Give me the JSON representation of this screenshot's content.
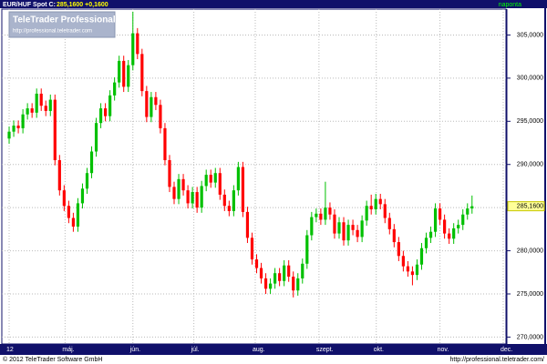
{
  "header": {
    "symbol": "EUR/HUF Spot C:",
    "last": "285,1600 +0,1600",
    "period": "naponta"
  },
  "logo": {
    "title": "TeleTrader Professional",
    "url": "http://professional.teletrader.com"
  },
  "footer": {
    "copyright": "© 2012 TeleTrader Software GmbH",
    "url": "http://professional.teletrader.com/"
  },
  "chart_data": {
    "type": "candlestick",
    "up_color": "#00c000",
    "down_color": "#ff0000",
    "grid": true,
    "last_price": {
      "value": 285.16,
      "label": "285,1600"
    },
    "xlim": [
      0,
      110
    ],
    "xticks": [
      {
        "value": 1,
        "label": "12"
      },
      {
        "value": 13.2,
        "label": "máj."
      },
      {
        "value": 28,
        "label": "jún."
      },
      {
        "value": 41.3,
        "label": "júl."
      },
      {
        "value": 54.7,
        "label": "aug."
      },
      {
        "value": 68.6,
        "label": "szept."
      },
      {
        "value": 81.1,
        "label": "okt."
      },
      {
        "value": 95,
        "label": "nov."
      },
      {
        "value": 108.8,
        "label": "dec."
      }
    ],
    "ylim": [
      269.2,
      308.0
    ],
    "yticks": [
      {
        "value": 270,
        "label": "270,0000"
      },
      {
        "value": 275,
        "label": "275,0000"
      },
      {
        "value": 280,
        "label": "280,0000"
      },
      {
        "value": 285,
        "label": "285,0000"
      },
      {
        "value": 290,
        "label": "290,0000"
      },
      {
        "value": 295,
        "label": "295,0000"
      },
      {
        "value": 300,
        "label": "300,0000"
      },
      {
        "value": 305,
        "label": "305,0000"
      }
    ],
    "x": [
      1,
      2,
      3,
      4,
      5,
      6,
      7,
      8,
      9,
      10,
      11,
      12,
      13,
      14,
      15,
      16,
      17,
      18,
      19,
      20,
      21,
      22,
      23,
      24,
      25,
      26,
      27,
      28,
      29,
      30,
      31,
      32,
      33,
      34,
      35,
      36,
      37,
      38,
      39,
      40,
      41,
      42,
      43,
      44,
      45,
      46,
      47,
      48,
      49,
      50,
      51,
      52,
      53,
      54,
      55,
      56,
      57,
      58,
      59,
      60,
      61,
      62,
      63,
      64,
      65,
      66,
      67,
      68,
      69,
      70,
      71,
      72,
      73,
      74,
      75,
      76,
      77,
      78,
      79,
      80,
      81,
      82,
      83,
      84,
      85,
      86,
      87,
      88,
      89,
      90,
      91,
      92,
      93,
      94,
      95,
      96,
      97,
      98,
      99,
      100,
      101,
      102
    ],
    "open": [
      293.0,
      293.8,
      294.5,
      294.2,
      295.8,
      296.5,
      296.0,
      298.2,
      296.8,
      296.2,
      297.5,
      290.5,
      287.0,
      285.2,
      283.8,
      282.8,
      285.5,
      287.2,
      289.0,
      291.5,
      294.8,
      296.5,
      295.6,
      298.0,
      299.5,
      302.0,
      299.0,
      301.5,
      305.2,
      302.8,
      298.5,
      295.5,
      297.8,
      296.9,
      294.2,
      290.5,
      287.4,
      286.0,
      288.3,
      287.0,
      285.5,
      286.8,
      285.0,
      287.5,
      288.8,
      287.9,
      289.0,
      286.5,
      285.2,
      284.6,
      287.0,
      289.7,
      284.5,
      281.5,
      279.0,
      278.0,
      276.8,
      275.6,
      276.2,
      277.4,
      276.5,
      278.3,
      277.0,
      275.4,
      276.8,
      278.5,
      281.8,
      283.9,
      284.3,
      283.6,
      285.0,
      284.2,
      282.0,
      283.3,
      281.2,
      283.0,
      282.4,
      281.6,
      283.5,
      285.2,
      284.8,
      286.0,
      285.4,
      283.8,
      282.5,
      281.0,
      279.4,
      278.2,
      277.6,
      277.2,
      278.4,
      280.3,
      281.5,
      282.2,
      284.9,
      283.6,
      282.0,
      281.4,
      282.6,
      283.0,
      284.2,
      284.9
    ],
    "high": [
      294.4,
      295.1,
      295.1,
      296.4,
      297.1,
      297.1,
      298.8,
      298.8,
      297.4,
      298.1,
      298.1,
      291.1,
      287.6,
      285.8,
      284.4,
      286.1,
      287.8,
      289.6,
      292.1,
      295.4,
      297.1,
      297.1,
      298.6,
      300.1,
      302.6,
      302.6,
      302.1,
      307.7,
      305.8,
      303.4,
      299.1,
      298.4,
      298.4,
      297.5,
      294.8,
      291.1,
      288.0,
      288.9,
      288.9,
      287.6,
      287.4,
      287.4,
      288.1,
      289.4,
      289.4,
      289.6,
      289.6,
      287.1,
      285.8,
      287.6,
      290.3,
      290.3,
      285.1,
      282.1,
      279.6,
      278.6,
      277.4,
      276.8,
      278.0,
      278.0,
      278.9,
      278.9,
      277.6,
      277.4,
      279.1,
      282.4,
      284.5,
      284.9,
      284.9,
      288.0,
      285.6,
      284.8,
      283.9,
      283.9,
      283.6,
      283.6,
      283.0,
      284.1,
      285.8,
      286.5,
      286.6,
      286.6,
      286.0,
      284.4,
      283.1,
      281.6,
      280.0,
      278.8,
      278.2,
      279.0,
      280.9,
      282.1,
      282.8,
      285.5,
      285.5,
      284.2,
      282.6,
      283.2,
      283.6,
      284.8,
      285.5,
      286.4
    ],
    "low": [
      292.4,
      293.2,
      293.6,
      293.6,
      295.2,
      295.4,
      295.4,
      296.2,
      295.6,
      295.6,
      289.9,
      286.4,
      284.6,
      283.2,
      282.2,
      282.2,
      284.9,
      286.6,
      288.4,
      290.9,
      294.2,
      295.0,
      295.0,
      297.4,
      298.9,
      298.4,
      298.4,
      300.9,
      302.2,
      297.9,
      294.9,
      294.9,
      296.3,
      293.6,
      289.9,
      286.8,
      285.4,
      285.4,
      286.4,
      284.9,
      284.9,
      284.4,
      284.4,
      286.9,
      287.3,
      287.3,
      285.9,
      284.6,
      284.0,
      284.0,
      286.4,
      283.9,
      280.9,
      278.4,
      277.4,
      276.2,
      275.0,
      275.0,
      275.6,
      275.9,
      275.9,
      276.4,
      274.6,
      274.8,
      276.2,
      277.9,
      281.2,
      283.3,
      283.0,
      283.0,
      283.6,
      281.4,
      281.4,
      280.6,
      280.6,
      281.8,
      281.0,
      281.0,
      282.9,
      284.2,
      284.2,
      284.8,
      283.2,
      281.9,
      280.4,
      278.8,
      277.6,
      277.0,
      276.0,
      276.6,
      277.8,
      279.7,
      280.9,
      281.6,
      283.0,
      281.4,
      280.8,
      280.8,
      282.0,
      282.4,
      283.6,
      284.3
    ],
    "close": [
      293.8,
      294.5,
      294.2,
      295.8,
      296.5,
      296.0,
      298.2,
      296.8,
      296.2,
      297.5,
      290.5,
      287.0,
      285.2,
      283.8,
      282.8,
      285.5,
      287.2,
      289.0,
      291.5,
      294.8,
      296.5,
      295.6,
      298.0,
      299.5,
      302.0,
      299.0,
      301.5,
      305.2,
      302.8,
      298.5,
      295.5,
      297.8,
      296.9,
      294.2,
      290.5,
      287.4,
      286.0,
      288.3,
      287.0,
      285.5,
      286.8,
      285.0,
      287.5,
      288.8,
      287.9,
      289.0,
      286.5,
      285.2,
      284.6,
      287.0,
      289.7,
      284.5,
      281.5,
      279.0,
      278.0,
      276.8,
      275.6,
      276.2,
      277.4,
      276.5,
      278.3,
      277.0,
      275.4,
      276.8,
      278.5,
      281.8,
      283.9,
      284.3,
      283.6,
      285.0,
      284.2,
      282.0,
      283.3,
      281.2,
      283.0,
      282.4,
      281.6,
      283.5,
      285.2,
      284.8,
      286.0,
      285.4,
      283.8,
      282.5,
      281.0,
      279.4,
      278.2,
      277.6,
      277.2,
      278.4,
      280.3,
      281.5,
      282.2,
      284.9,
      283.6,
      282.0,
      281.4,
      282.6,
      283.0,
      284.2,
      284.9,
      285.16
    ]
  }
}
